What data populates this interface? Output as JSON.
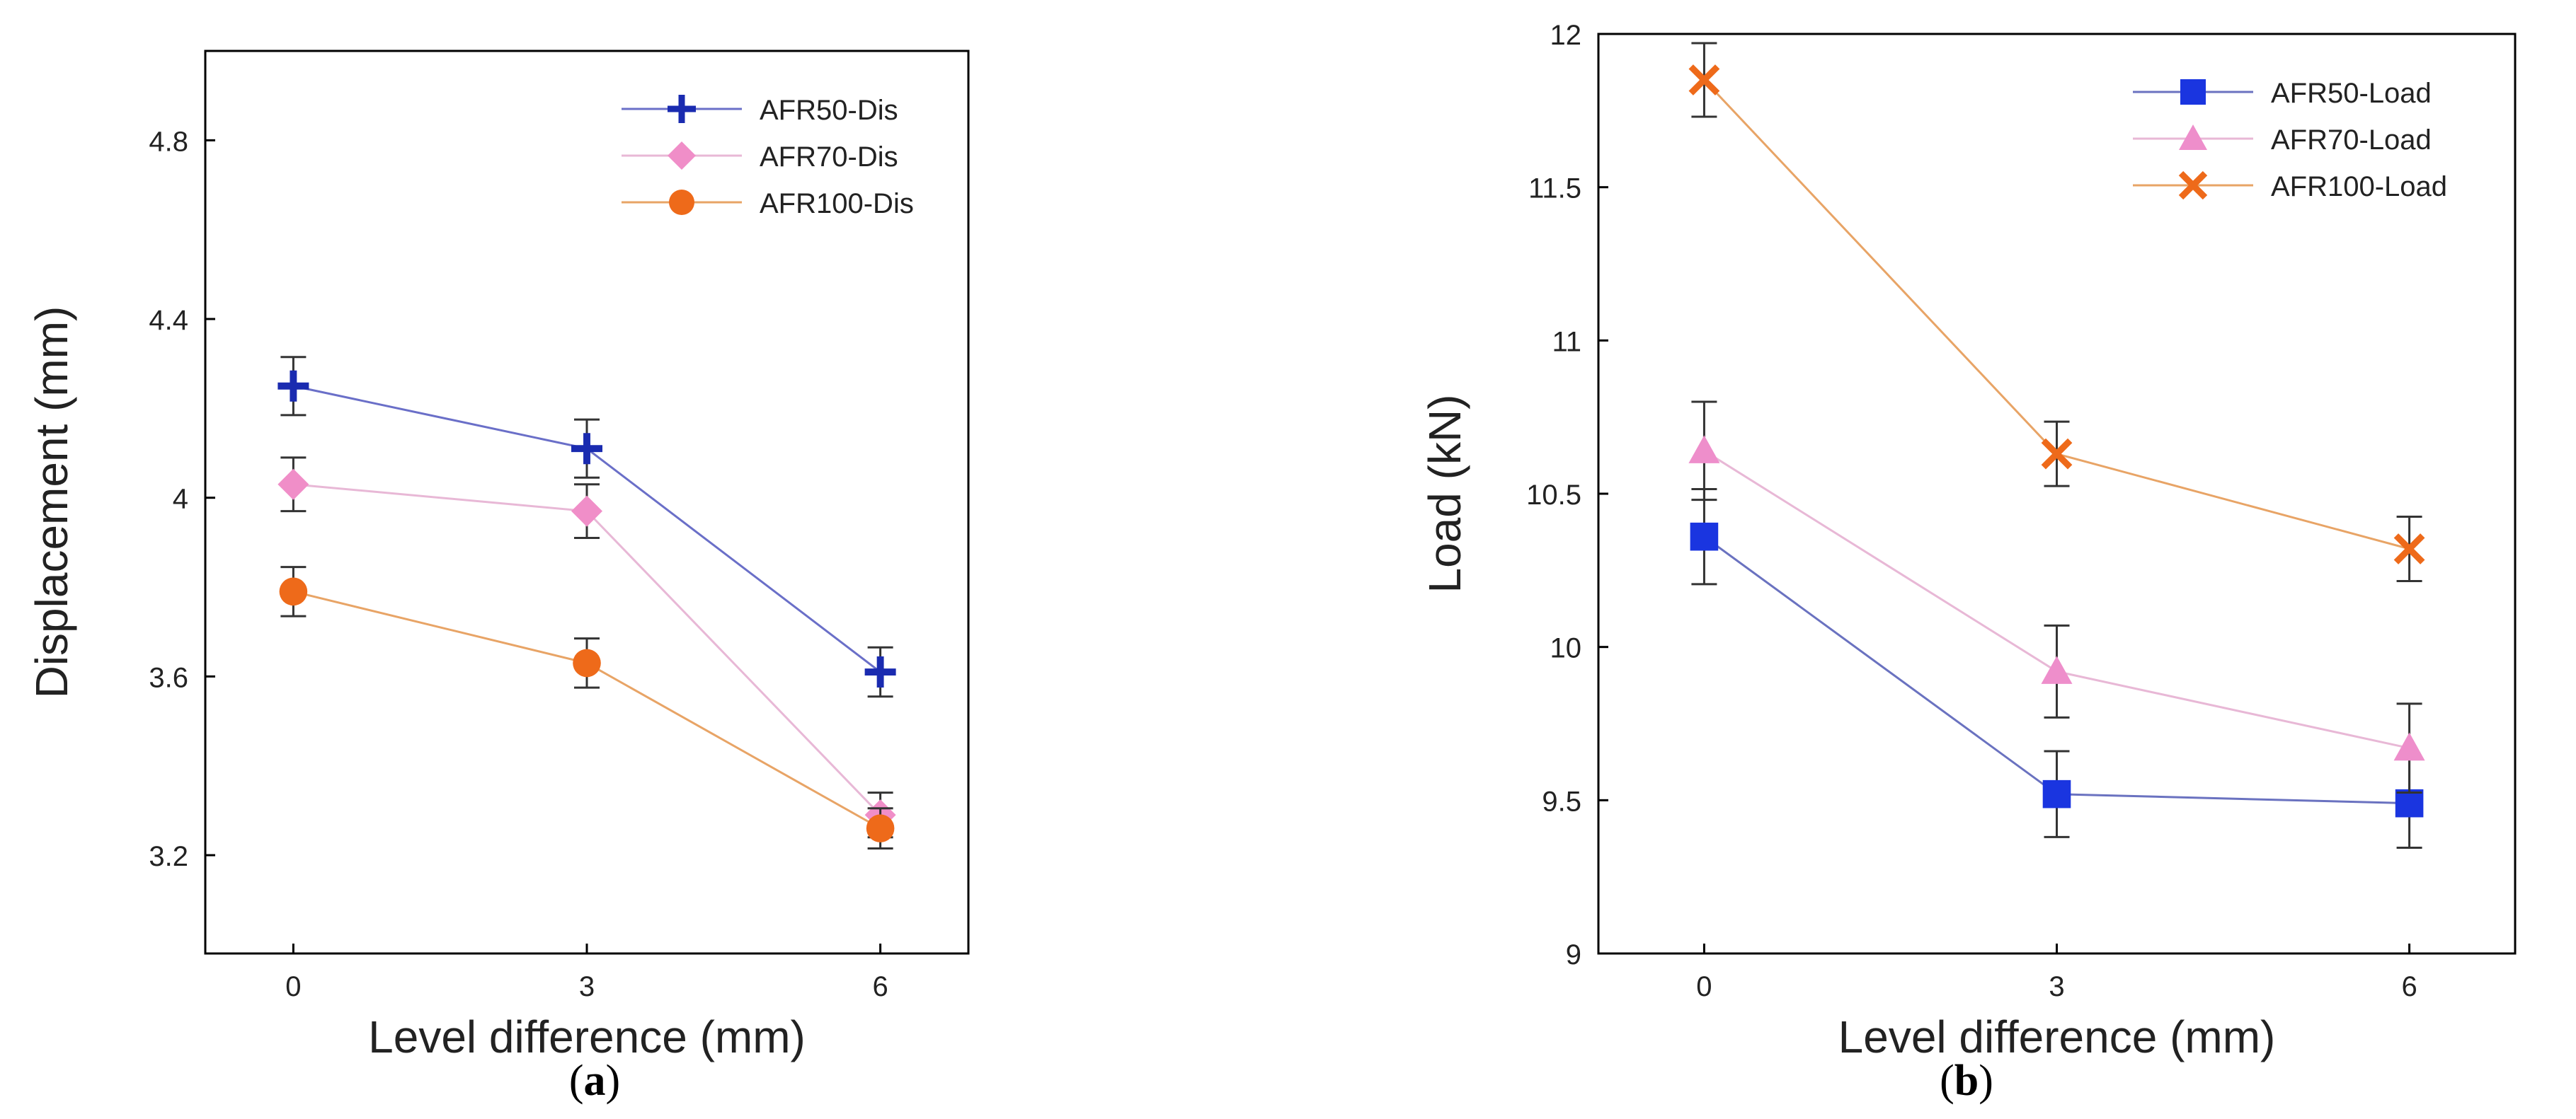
{
  "figure": {
    "caption_a": "a",
    "caption_b": "b"
  },
  "chart_data": [
    {
      "type": "line",
      "panel": "a",
      "title": "",
      "xlabel": "Level difference (mm)",
      "ylabel": "Displacement (mm)",
      "x": [
        0,
        3,
        6
      ],
      "xlim": [
        -0.9,
        6.9
      ],
      "ylim": [
        2.98,
        5.0
      ],
      "xticks": [
        0,
        3,
        6
      ],
      "yticks": [
        3.2,
        3.6,
        4,
        4.4,
        4.8
      ],
      "ytick_labels": [
        "3.2",
        "3.6",
        "4",
        "4.4",
        "4.8"
      ],
      "grid": false,
      "legend_position": "top-right",
      "series": [
        {
          "name": "AFR50-Dis",
          "marker": "plus",
          "color": "#1a2bb0",
          "line_color": "#6a6fc8",
          "values": [
            4.25,
            4.11,
            3.61
          ],
          "errors": [
            0.065,
            0.065,
            0.055
          ]
        },
        {
          "name": "AFR70-Dis",
          "marker": "diamond",
          "color": "#f08ec8",
          "line_color": "#e8b8d6",
          "values": [
            4.03,
            3.97,
            3.29
          ],
          "errors": [
            0.06,
            0.06,
            0.05
          ]
        },
        {
          "name": "AFR100-Dis",
          "marker": "circle",
          "color": "#ee6a1a",
          "line_color": "#e8a466",
          "values": [
            3.79,
            3.63,
            3.26
          ],
          "errors": [
            0.055,
            0.055,
            0.045
          ]
        }
      ]
    },
    {
      "type": "line",
      "panel": "b",
      "title": "",
      "xlabel": "Level difference (mm)",
      "ylabel": "Load (kN)",
      "x": [
        0,
        3,
        6
      ],
      "xlim": [
        -0.9,
        6.9
      ],
      "ylim": [
        9.0,
        12.0
      ],
      "xticks": [
        0,
        3,
        6
      ],
      "yticks": [
        9,
        9.5,
        10,
        10.5,
        11,
        11.5,
        12
      ],
      "ytick_labels": [
        "9",
        "9.5",
        "10",
        "10.5",
        "11",
        "11.5",
        "12"
      ],
      "grid": false,
      "legend_position": "top-right",
      "series": [
        {
          "name": "AFR50-Load",
          "marker": "square",
          "color": "#1a35e0",
          "line_color": "#6a72c0",
          "values": [
            10.36,
            9.52,
            9.49
          ],
          "errors": [
            0.155,
            0.14,
            0.145
          ]
        },
        {
          "name": "AFR70-Load",
          "marker": "triangle",
          "color": "#ee8ecb",
          "line_color": "#e8b8d6",
          "values": [
            10.64,
            9.92,
            9.67
          ],
          "errors": [
            0.16,
            0.15,
            0.145
          ]
        },
        {
          "name": "AFR100-Load",
          "marker": "x",
          "color": "#ee6a1a",
          "line_color": "#e8a466",
          "values": [
            11.85,
            10.63,
            10.32
          ],
          "errors": [
            0.12,
            0.105,
            0.105
          ]
        }
      ]
    }
  ]
}
